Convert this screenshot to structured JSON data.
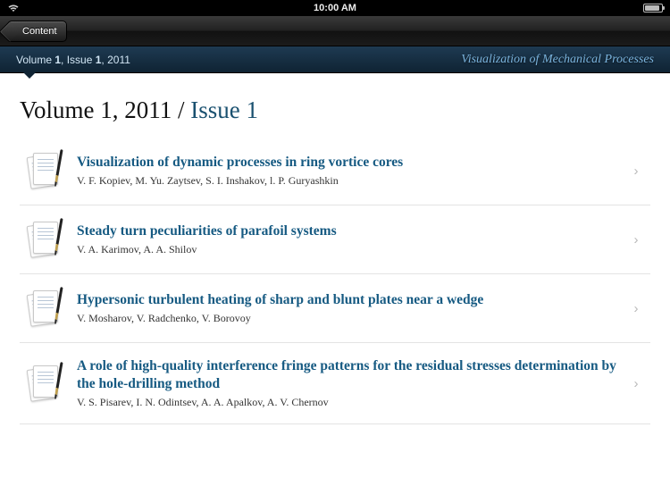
{
  "statusBar": {
    "time": "10:00 AM"
  },
  "toolbar": {
    "backLabel": "Content"
  },
  "subheader": {
    "breadcrumbPrefix": "Volume ",
    "volume": "1",
    "middle": ", Issue ",
    "issue": "1",
    "suffix": ", 2011",
    "journal": "Visualization of Mechanical Processes"
  },
  "pageTitle": {
    "black": "Volume 1, 2011 / ",
    "blue": "Issue 1"
  },
  "colors": {
    "titleBlue": "#19506f",
    "linkBlue": "#165a82"
  },
  "articles": [
    {
      "title": "Visualization of dynamic processes in ring vortice cores",
      "authors": "V. F. Kopiev, M. Yu. Zaytsev, S. I. Inshakov, l. P. Guryashkin"
    },
    {
      "title": "Steady turn peculiarities of parafoil systems",
      "authors": "V. A. Karimov, A. A. Shilov"
    },
    {
      "title": "Hypersonic turbulent heating of sharp and blunt plates near a wedge",
      "authors": "V. Mosharov, V. Radchenko, V. Borovoy"
    },
    {
      "title": "A role of high-quality interference fringe patterns for the residual stresses determination by the hole-drilling method",
      "authors": "V. S. Pisarev, I. N. Odintsev, A. A. Apalkov, A. V. Chernov"
    }
  ]
}
